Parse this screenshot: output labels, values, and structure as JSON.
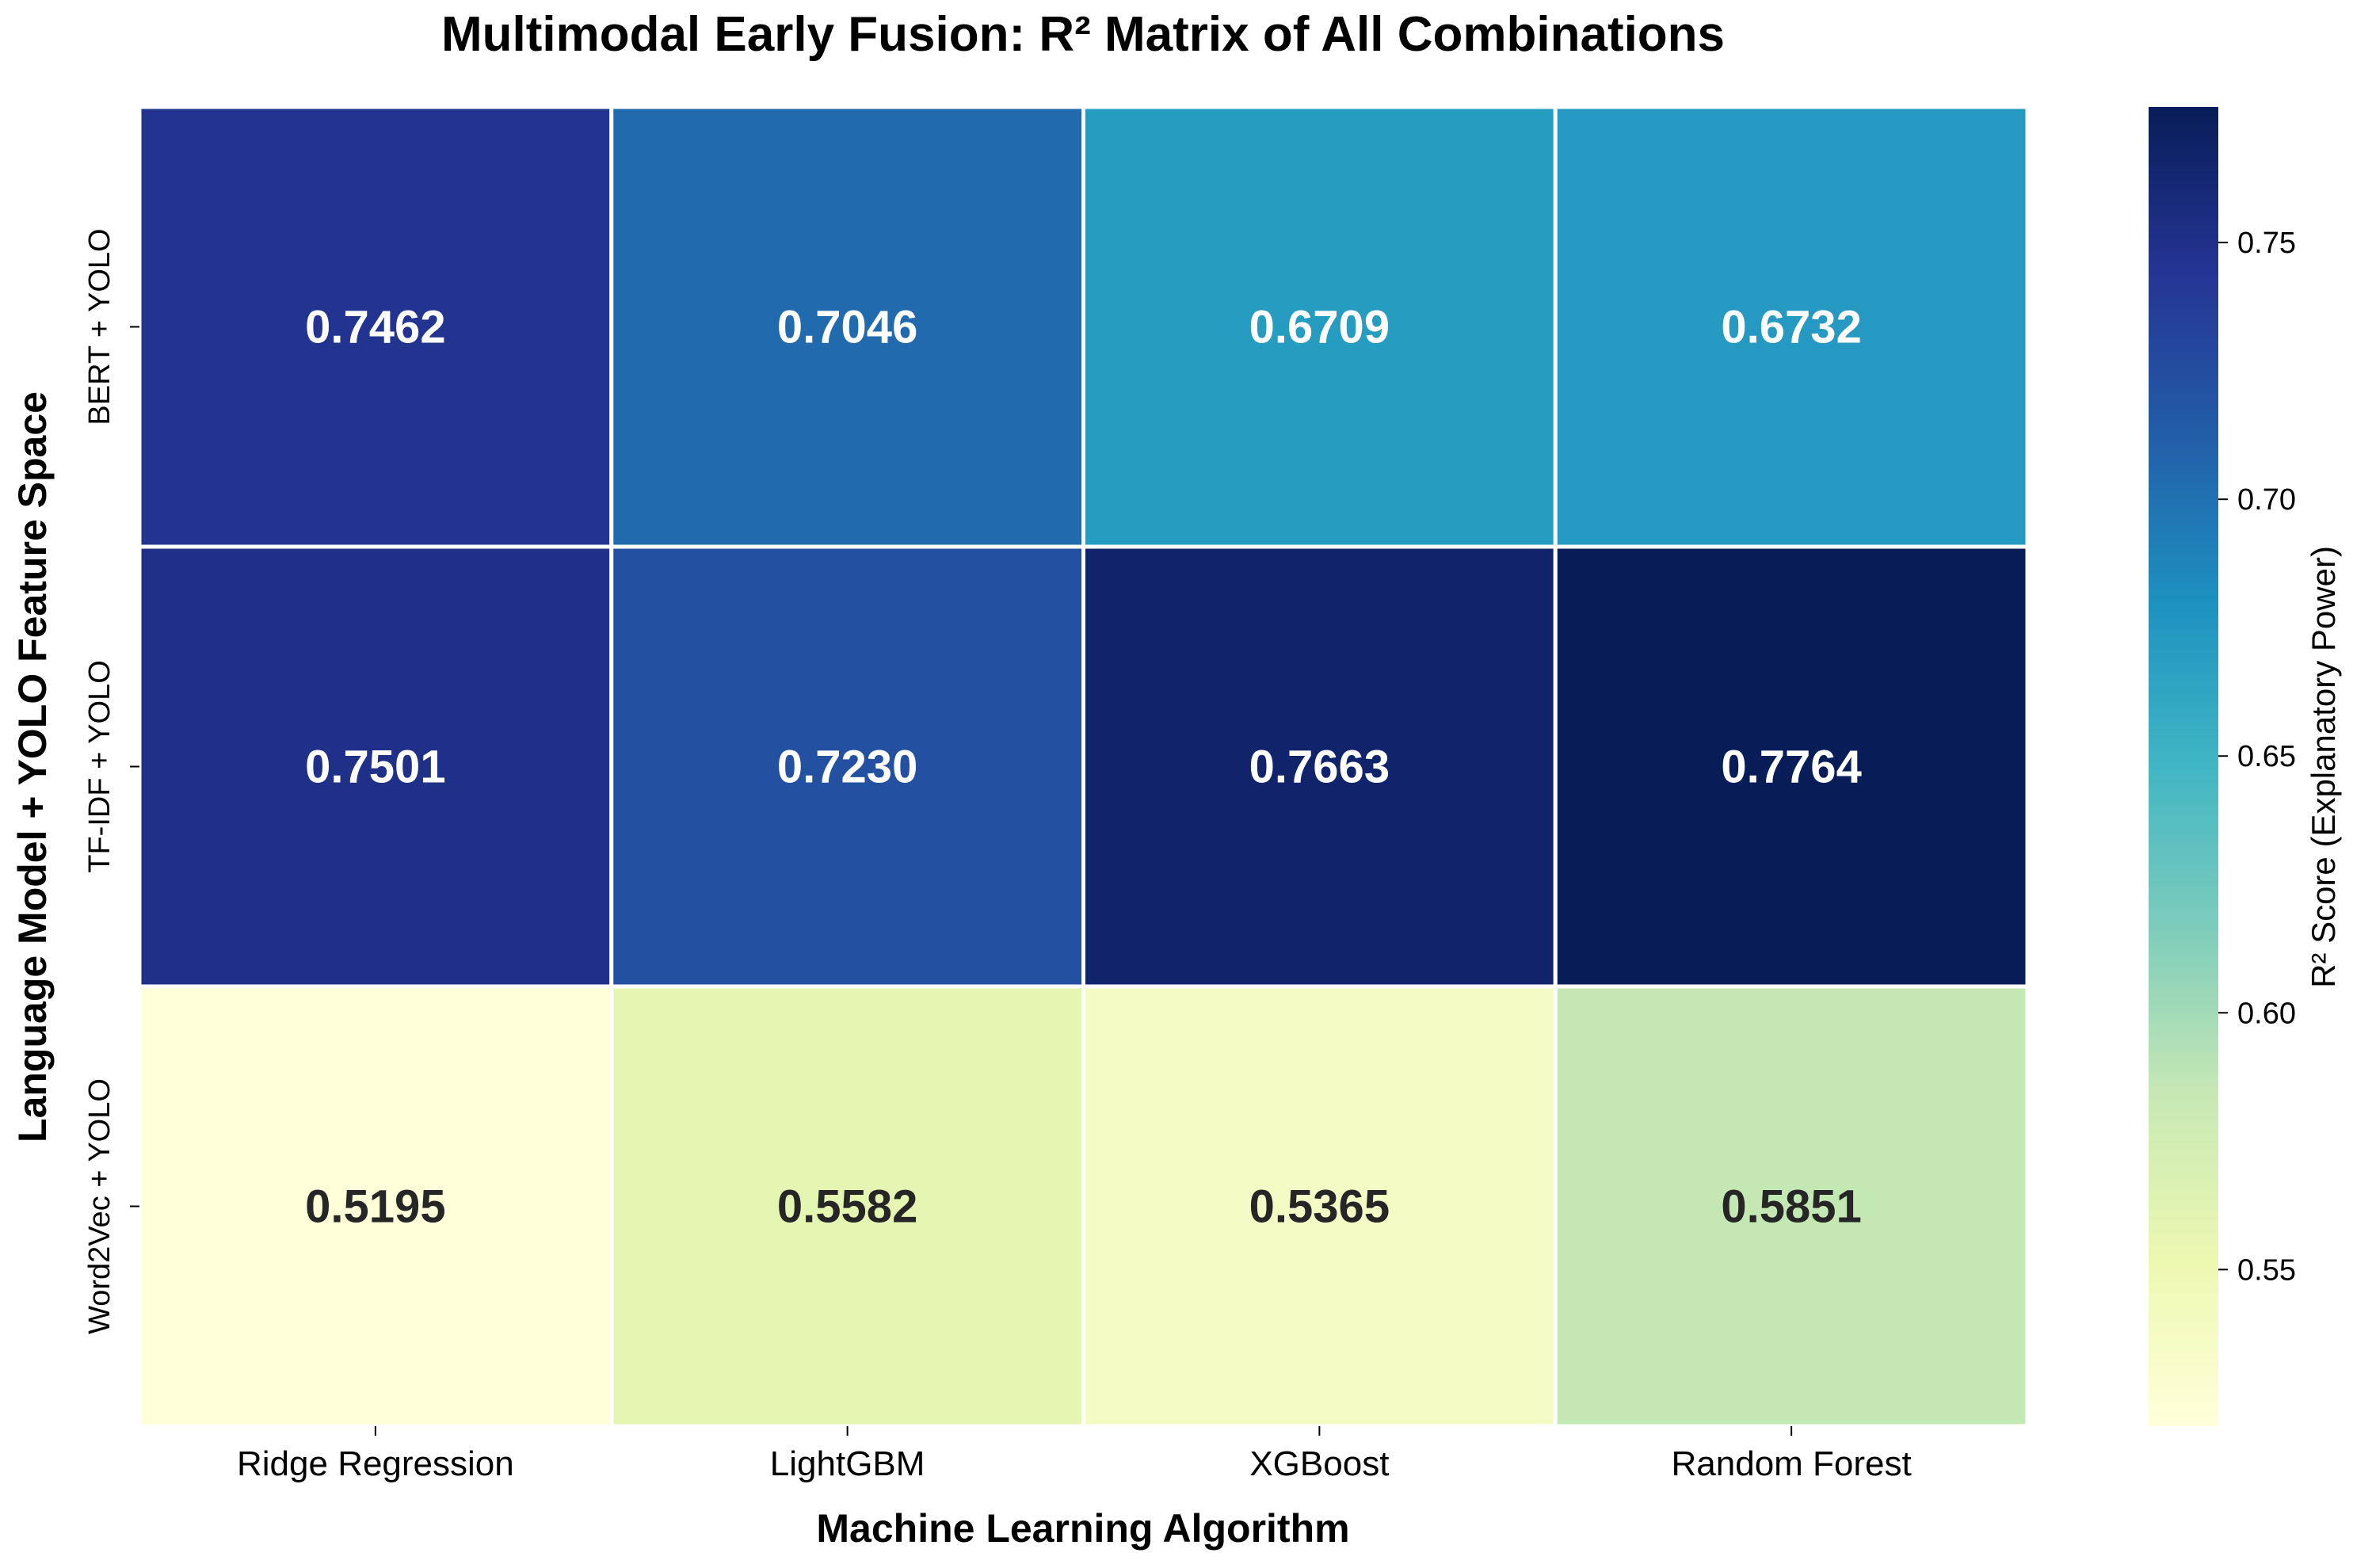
{
  "chart_data": {
    "type": "heatmap",
    "title": "Multimodal Early Fusion: R² Matrix of All Combinations",
    "xlabel": "Machine Learning Algorithm",
    "ylabel": "Language Model + YOLO Feature Space",
    "x_categories": [
      "Ridge Regression",
      "LightGBM",
      "XGBoost",
      "Random Forest"
    ],
    "y_categories": [
      "BERT + YOLO",
      "TF-IDF + YOLO",
      "Word2Vec + YOLO"
    ],
    "values": [
      [
        0.7462,
        0.7046,
        0.6709,
        0.6732
      ],
      [
        0.7501,
        0.723,
        0.7663,
        0.7764
      ],
      [
        0.5195,
        0.5582,
        0.5365,
        0.5851
      ]
    ],
    "value_labels": [
      [
        "0.7462",
        "0.7046",
        "0.6709",
        "0.6732"
      ],
      [
        "0.7501",
        "0.7230",
        "0.7663",
        "0.7764"
      ],
      [
        "0.5195",
        "0.5582",
        "0.5365",
        "0.5851"
      ]
    ],
    "colorbar": {
      "label": "R² Score (Explanatory Power)",
      "colormap": "YlGnBu",
      "vmin": 0.5195,
      "vmax": 0.7764,
      "ticks": [
        0.55,
        0.6,
        0.65,
        0.7,
        0.75
      ],
      "tick_labels": [
        "0.55",
        "0.60",
        "0.65",
        "0.70",
        "0.75"
      ],
      "stops": [
        "#ffffd9",
        "#edf8b1",
        "#c7e9b4",
        "#7fcdbb",
        "#41b6c4",
        "#1d91c0",
        "#225ea8",
        "#253494",
        "#081d58"
      ]
    },
    "text_colors": {
      "light": "#ffffff",
      "dark": "#262626"
    },
    "grid_line_color": "#ffffff"
  }
}
